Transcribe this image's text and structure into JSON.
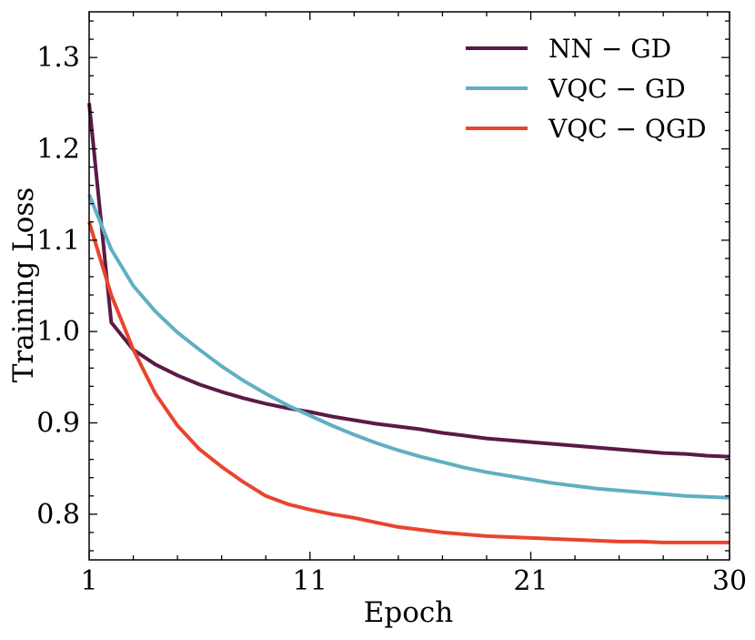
{
  "chart_data": {
    "type": "line",
    "title": "",
    "xlabel": "Epoch",
    "ylabel": "Training Loss",
    "xlim": [
      1,
      30
    ],
    "ylim": [
      0.75,
      1.35
    ],
    "xticks": [
      1,
      11,
      21,
      30
    ],
    "xtick_labels": [
      "1",
      "11",
      "21",
      "30"
    ],
    "yticks": [
      0.8,
      0.9,
      1.0,
      1.1,
      1.2,
      1.3
    ],
    "ytick_labels": [
      "0.8",
      "0.9",
      "1.0",
      "1.1",
      "1.2",
      "1.3"
    ],
    "x_minor_step": 2,
    "y_minor_step": 0.02,
    "grid": false,
    "legend_position": "top-right",
    "x": [
      1,
      2,
      3,
      4,
      5,
      6,
      7,
      8,
      9,
      10,
      11,
      12,
      13,
      14,
      15,
      16,
      17,
      18,
      19,
      20,
      21,
      22,
      23,
      24,
      25,
      26,
      27,
      28,
      29,
      30
    ],
    "series": [
      {
        "name": "NN − GD",
        "color": "#5a1a47",
        "values": [
          1.25,
          1.01,
          0.98,
          0.964,
          0.952,
          0.942,
          0.934,
          0.927,
          0.921,
          0.916,
          0.912,
          0.907,
          0.903,
          0.899,
          0.896,
          0.893,
          0.889,
          0.886,
          0.883,
          0.881,
          0.879,
          0.877,
          0.875,
          0.873,
          0.871,
          0.869,
          0.867,
          0.866,
          0.864,
          0.863
        ]
      },
      {
        "name": "VQC − GD",
        "color": "#60afc2",
        "values": [
          1.15,
          1.09,
          1.05,
          1.022,
          0.999,
          0.98,
          0.962,
          0.946,
          0.932,
          0.919,
          0.908,
          0.897,
          0.887,
          0.878,
          0.87,
          0.863,
          0.857,
          0.851,
          0.846,
          0.842,
          0.838,
          0.834,
          0.831,
          0.828,
          0.826,
          0.824,
          0.822,
          0.82,
          0.819,
          0.818
        ]
      },
      {
        "name": "VQC − QGD",
        "color": "#e8452f",
        "values": [
          1.12,
          1.04,
          0.98,
          0.932,
          0.897,
          0.871,
          0.852,
          0.835,
          0.82,
          0.811,
          0.805,
          0.8,
          0.796,
          0.791,
          0.786,
          0.783,
          0.78,
          0.778,
          0.776,
          0.775,
          0.774,
          0.773,
          0.772,
          0.771,
          0.77,
          0.77,
          0.769,
          0.769,
          0.769,
          0.769
        ]
      }
    ]
  }
}
